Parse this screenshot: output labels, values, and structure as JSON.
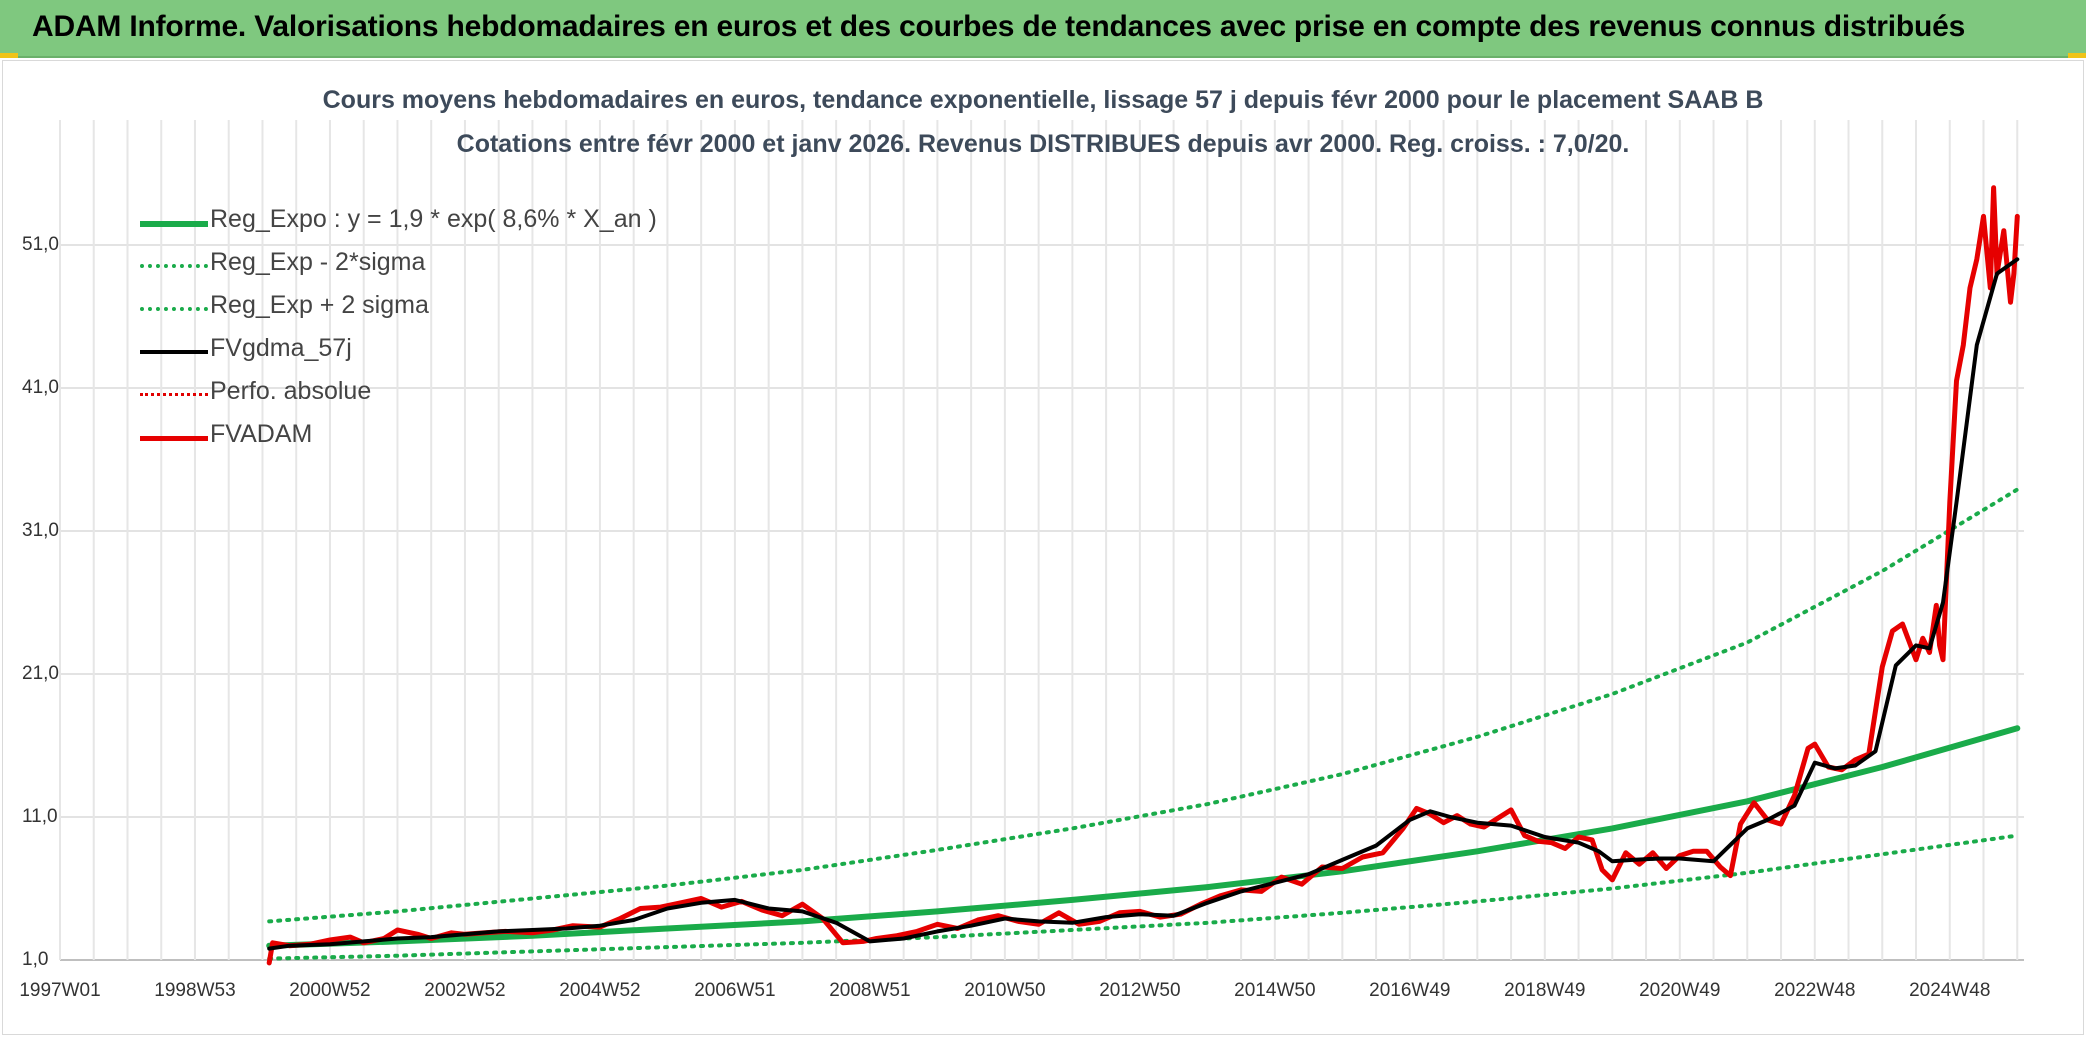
{
  "banner": {
    "title": "ADAM Informe. Valorisations hebdomadaires en euros et des courbes de tendances avec prise en compte des revenus connus distribués"
  },
  "chart_data": {
    "type": "line",
    "title": "Cours moyens hebdomadaires en euros, tendance exponentielle, lissage 57 j depuis févr 2000 pour le placement SAAB B",
    "subtitle": "Cotations entre févr 2000 et janv 2026. Revenus DISTRIBUES depuis avr 2000. Reg. croiss. : 7,0/20.",
    "xlabel": "",
    "ylabel": "",
    "ylim": [
      1.0,
      56.0
    ],
    "xlim": [
      1997.0,
      2026.1
    ],
    "yticks": [
      "1,0",
      "11,0",
      "21,0",
      "31,0",
      "41,0",
      "51,0"
    ],
    "ytick_values": [
      1,
      11,
      21,
      31,
      41,
      51
    ],
    "xticks": [
      "1997W01",
      "1998W53",
      "2000W52",
      "2002W52",
      "2004W52",
      "2006W51",
      "2008W51",
      "2010W50",
      "2012W50",
      "2014W50",
      "2016W49",
      "2018W49",
      "2020W49",
      "2022W48",
      "2024W48"
    ],
    "xtick_values": [
      1997.0,
      1999.0,
      2001.0,
      2003.0,
      2005.0,
      2007.0,
      2009.0,
      2011.0,
      2013.0,
      2015.0,
      2017.0,
      2019.0,
      2021.0,
      2023.0,
      2025.0
    ],
    "grid": true,
    "legend_position": "top-left",
    "series": [
      {
        "name": "Reg_Expo : y = 1,9 * exp( 8,6% *  X_an )",
        "style": "solid",
        "color": "#1aab4a",
        "width": 6,
        "x": [
          2000.1,
          2002.0,
          2004.0,
          2006.0,
          2008.0,
          2010.0,
          2012.0,
          2014.0,
          2016.0,
          2018.0,
          2020.0,
          2022.0,
          2024.0,
          2026.0
        ],
        "values": [
          2.0,
          2.3,
          2.7,
          3.2,
          3.7,
          4.4,
          5.2,
          6.1,
          7.2,
          8.6,
          10.2,
          12.1,
          14.5,
          17.2
        ]
      },
      {
        "name": "Reg_Exp - 2*sigma",
        "style": "dotted",
        "color": "#1aab4a",
        "width": 4,
        "x": [
          2000.1,
          2002.0,
          2004.0,
          2006.0,
          2008.0,
          2010.0,
          2012.0,
          2014.0,
          2016.0,
          2018.0,
          2020.0,
          2022.0,
          2024.0,
          2026.0
        ],
        "values": [
          1.1,
          1.3,
          1.6,
          1.9,
          2.2,
          2.6,
          3.1,
          3.6,
          4.3,
          5.1,
          6.0,
          7.1,
          8.4,
          9.7
        ]
      },
      {
        "name": "Reg_Exp + 2 sigma",
        "style": "dotted",
        "color": "#1aab4a",
        "width": 4,
        "x": [
          2000.1,
          2002.0,
          2004.0,
          2006.0,
          2008.0,
          2010.0,
          2012.0,
          2014.0,
          2016.0,
          2018.0,
          2020.0,
          2022.0,
          2024.0,
          2026.0
        ],
        "values": [
          3.7,
          4.4,
          5.3,
          6.2,
          7.3,
          8.7,
          10.2,
          11.9,
          14.0,
          16.6,
          19.6,
          23.2,
          28.2,
          33.9
        ]
      },
      {
        "name": "FVgdma_57j",
        "style": "solid",
        "color": "#000000",
        "width": 4,
        "x": [
          2000.1,
          2000.4,
          2001.0,
          2001.5,
          2002.0,
          2002.5,
          2003.0,
          2003.5,
          2004.0,
          2004.5,
          2005.0,
          2005.5,
          2006.0,
          2006.5,
          2007.0,
          2007.5,
          2008.0,
          2008.5,
          2009.0,
          2009.5,
          2010.0,
          2010.5,
          2011.0,
          2011.5,
          2012.0,
          2012.5,
          2013.0,
          2013.5,
          2014.0,
          2014.5,
          2015.0,
          2015.5,
          2016.0,
          2016.5,
          2017.0,
          2017.3,
          2017.6,
          2018.0,
          2018.5,
          2019.0,
          2019.5,
          2019.8,
          2020.0,
          2020.3,
          2020.7,
          2021.0,
          2021.5,
          2022.0,
          2022.3,
          2022.7,
          2023.0,
          2023.3,
          2023.6,
          2023.9,
          2024.2,
          2024.5,
          2024.7,
          2024.9,
          2025.1,
          2025.4,
          2025.7,
          2026.0
        ],
        "values": [
          1.8,
          2.0,
          2.1,
          2.3,
          2.5,
          2.6,
          2.8,
          3.0,
          3.1,
          3.2,
          3.4,
          3.8,
          4.6,
          5.0,
          5.2,
          4.6,
          4.4,
          3.6,
          2.3,
          2.5,
          3.0,
          3.4,
          3.9,
          3.7,
          3.6,
          4.0,
          4.2,
          4.1,
          5.0,
          5.8,
          6.4,
          7.0,
          8.0,
          9.0,
          10.8,
          11.4,
          11.0,
          10.6,
          10.4,
          9.6,
          9.2,
          8.6,
          7.9,
          8.0,
          8.1,
          8.1,
          7.9,
          10.2,
          10.8,
          11.8,
          14.8,
          14.4,
          14.6,
          15.6,
          21.6,
          23.0,
          22.8,
          26.0,
          33.0,
          44.0,
          49.0,
          50.0
        ]
      },
      {
        "name": "Perfo. absolue",
        "style": "dotted",
        "color": "#e00000",
        "width": 3,
        "x": [],
        "values": []
      },
      {
        "name": "FVADAM",
        "style": "solid",
        "color": "#e60000",
        "width": 5,
        "x": [
          2000.1,
          2000.15,
          2000.4,
          2000.7,
          2001.0,
          2001.3,
          2001.5,
          2001.8,
          2002.0,
          2002.3,
          2002.5,
          2002.8,
          2003.0,
          2003.3,
          2003.6,
          2004.0,
          2004.3,
          2004.6,
          2005.0,
          2005.3,
          2005.6,
          2005.9,
          2006.2,
          2006.5,
          2006.8,
          2007.1,
          2007.4,
          2007.7,
          2008.0,
          2008.3,
          2008.6,
          2008.9,
          2009.1,
          2009.4,
          2009.7,
          2010.0,
          2010.3,
          2010.6,
          2010.9,
          2011.2,
          2011.5,
          2011.8,
          2012.1,
          2012.4,
          2012.7,
          2013.0,
          2013.3,
          2013.6,
          2013.9,
          2014.2,
          2014.5,
          2014.8,
          2015.1,
          2015.4,
          2015.7,
          2016.0,
          2016.3,
          2016.6,
          2016.9,
          2017.1,
          2017.3,
          2017.5,
          2017.7,
          2017.9,
          2018.1,
          2018.3,
          2018.5,
          2018.7,
          2018.9,
          2019.1,
          2019.3,
          2019.5,
          2019.7,
          2019.85,
          2020.0,
          2020.2,
          2020.4,
          2020.6,
          2020.8,
          2021.0,
          2021.2,
          2021.4,
          2021.6,
          2021.75,
          2021.9,
          2022.1,
          2022.3,
          2022.5,
          2022.7,
          2022.9,
          2023.0,
          2023.2,
          2023.4,
          2023.6,
          2023.8,
          2024.0,
          2024.15,
          2024.3,
          2024.5,
          2024.6,
          2024.7,
          2024.8,
          2024.85,
          2024.9,
          2025.0,
          2025.1,
          2025.2,
          2025.3,
          2025.4,
          2025.5,
          2025.6,
          2025.65,
          2025.7,
          2025.8,
          2025.9,
          2025.95,
          2026.0
        ],
        "values": [
          0.8,
          2.2,
          2.0,
          2.1,
          2.4,
          2.6,
          2.2,
          2.5,
          3.1,
          2.8,
          2.5,
          2.9,
          2.8,
          2.9,
          3.0,
          2.9,
          3.1,
          3.4,
          3.3,
          3.9,
          4.6,
          4.7,
          5.0,
          5.3,
          4.7,
          5.1,
          4.5,
          4.1,
          4.9,
          3.9,
          2.2,
          2.3,
          2.5,
          2.7,
          3.0,
          3.5,
          3.2,
          3.8,
          4.1,
          3.7,
          3.5,
          4.3,
          3.5,
          3.7,
          4.3,
          4.4,
          4.0,
          4.2,
          4.9,
          5.5,
          5.9,
          5.8,
          6.8,
          6.3,
          7.5,
          7.4,
          8.2,
          8.5,
          10.2,
          11.6,
          11.2,
          10.6,
          11.1,
          10.5,
          10.3,
          10.9,
          11.5,
          9.7,
          9.3,
          9.2,
          8.8,
          9.6,
          9.4,
          7.3,
          6.6,
          8.5,
          7.7,
          8.5,
          7.4,
          8.3,
          8.6,
          8.6,
          7.5,
          6.9,
          10.5,
          12.0,
          10.8,
          10.5,
          12.5,
          15.8,
          16.1,
          14.5,
          14.3,
          15.0,
          15.4,
          21.5,
          24.0,
          24.5,
          22.0,
          23.5,
          22.5,
          25.8,
          23.0,
          22.0,
          33.0,
          41.5,
          44.0,
          48.0,
          50.0,
          53.0,
          48.0,
          55.0,
          49.0,
          52.0,
          47.0,
          49.0,
          53.0
        ]
      }
    ]
  }
}
